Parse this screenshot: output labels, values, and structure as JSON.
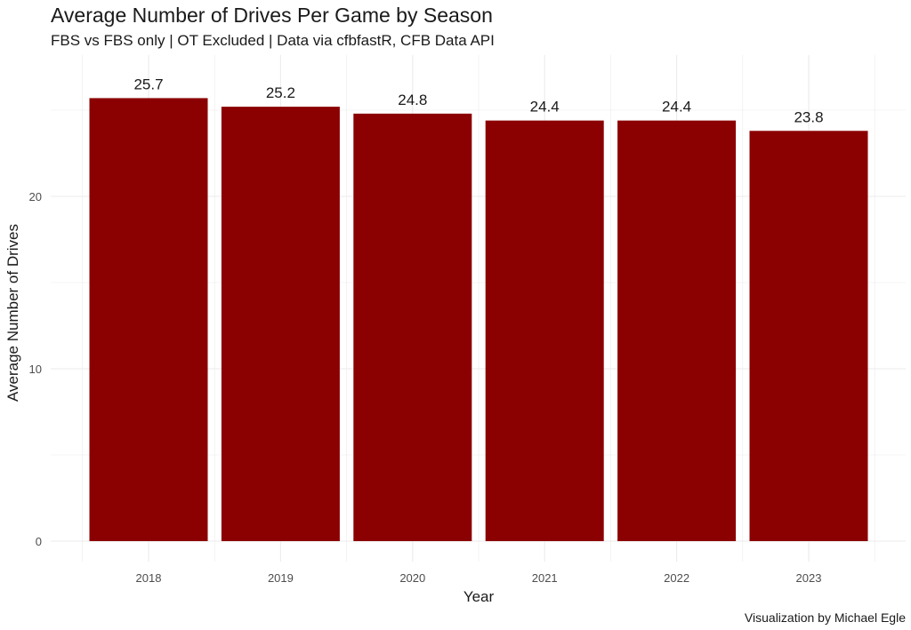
{
  "chart_data": {
    "type": "bar",
    "title": "Average Number of Drives Per Game by Season",
    "subtitle": "FBS vs FBS only | OT Excluded | Data via cfbfastR, CFB Data API",
    "caption": "Visualization by Michael Egle",
    "xlabel": "Year",
    "ylabel": "Average Number of Drives",
    "categories": [
      "2018",
      "2019",
      "2020",
      "2021",
      "2022",
      "2023"
    ],
    "values": [
      25.7,
      25.2,
      24.8,
      24.4,
      24.4,
      23.8
    ],
    "data_labels": [
      "25.7",
      "25.2",
      "24.8",
      "24.4",
      "24.4",
      "23.8"
    ],
    "y_ticks": [
      0,
      10,
      20
    ],
    "y_tick_labels": [
      "0",
      "10",
      "20"
    ],
    "ylim": [
      0,
      28
    ],
    "grid": true,
    "bar_color": "#8b0000",
    "grid_color": "#ebebeb"
  }
}
